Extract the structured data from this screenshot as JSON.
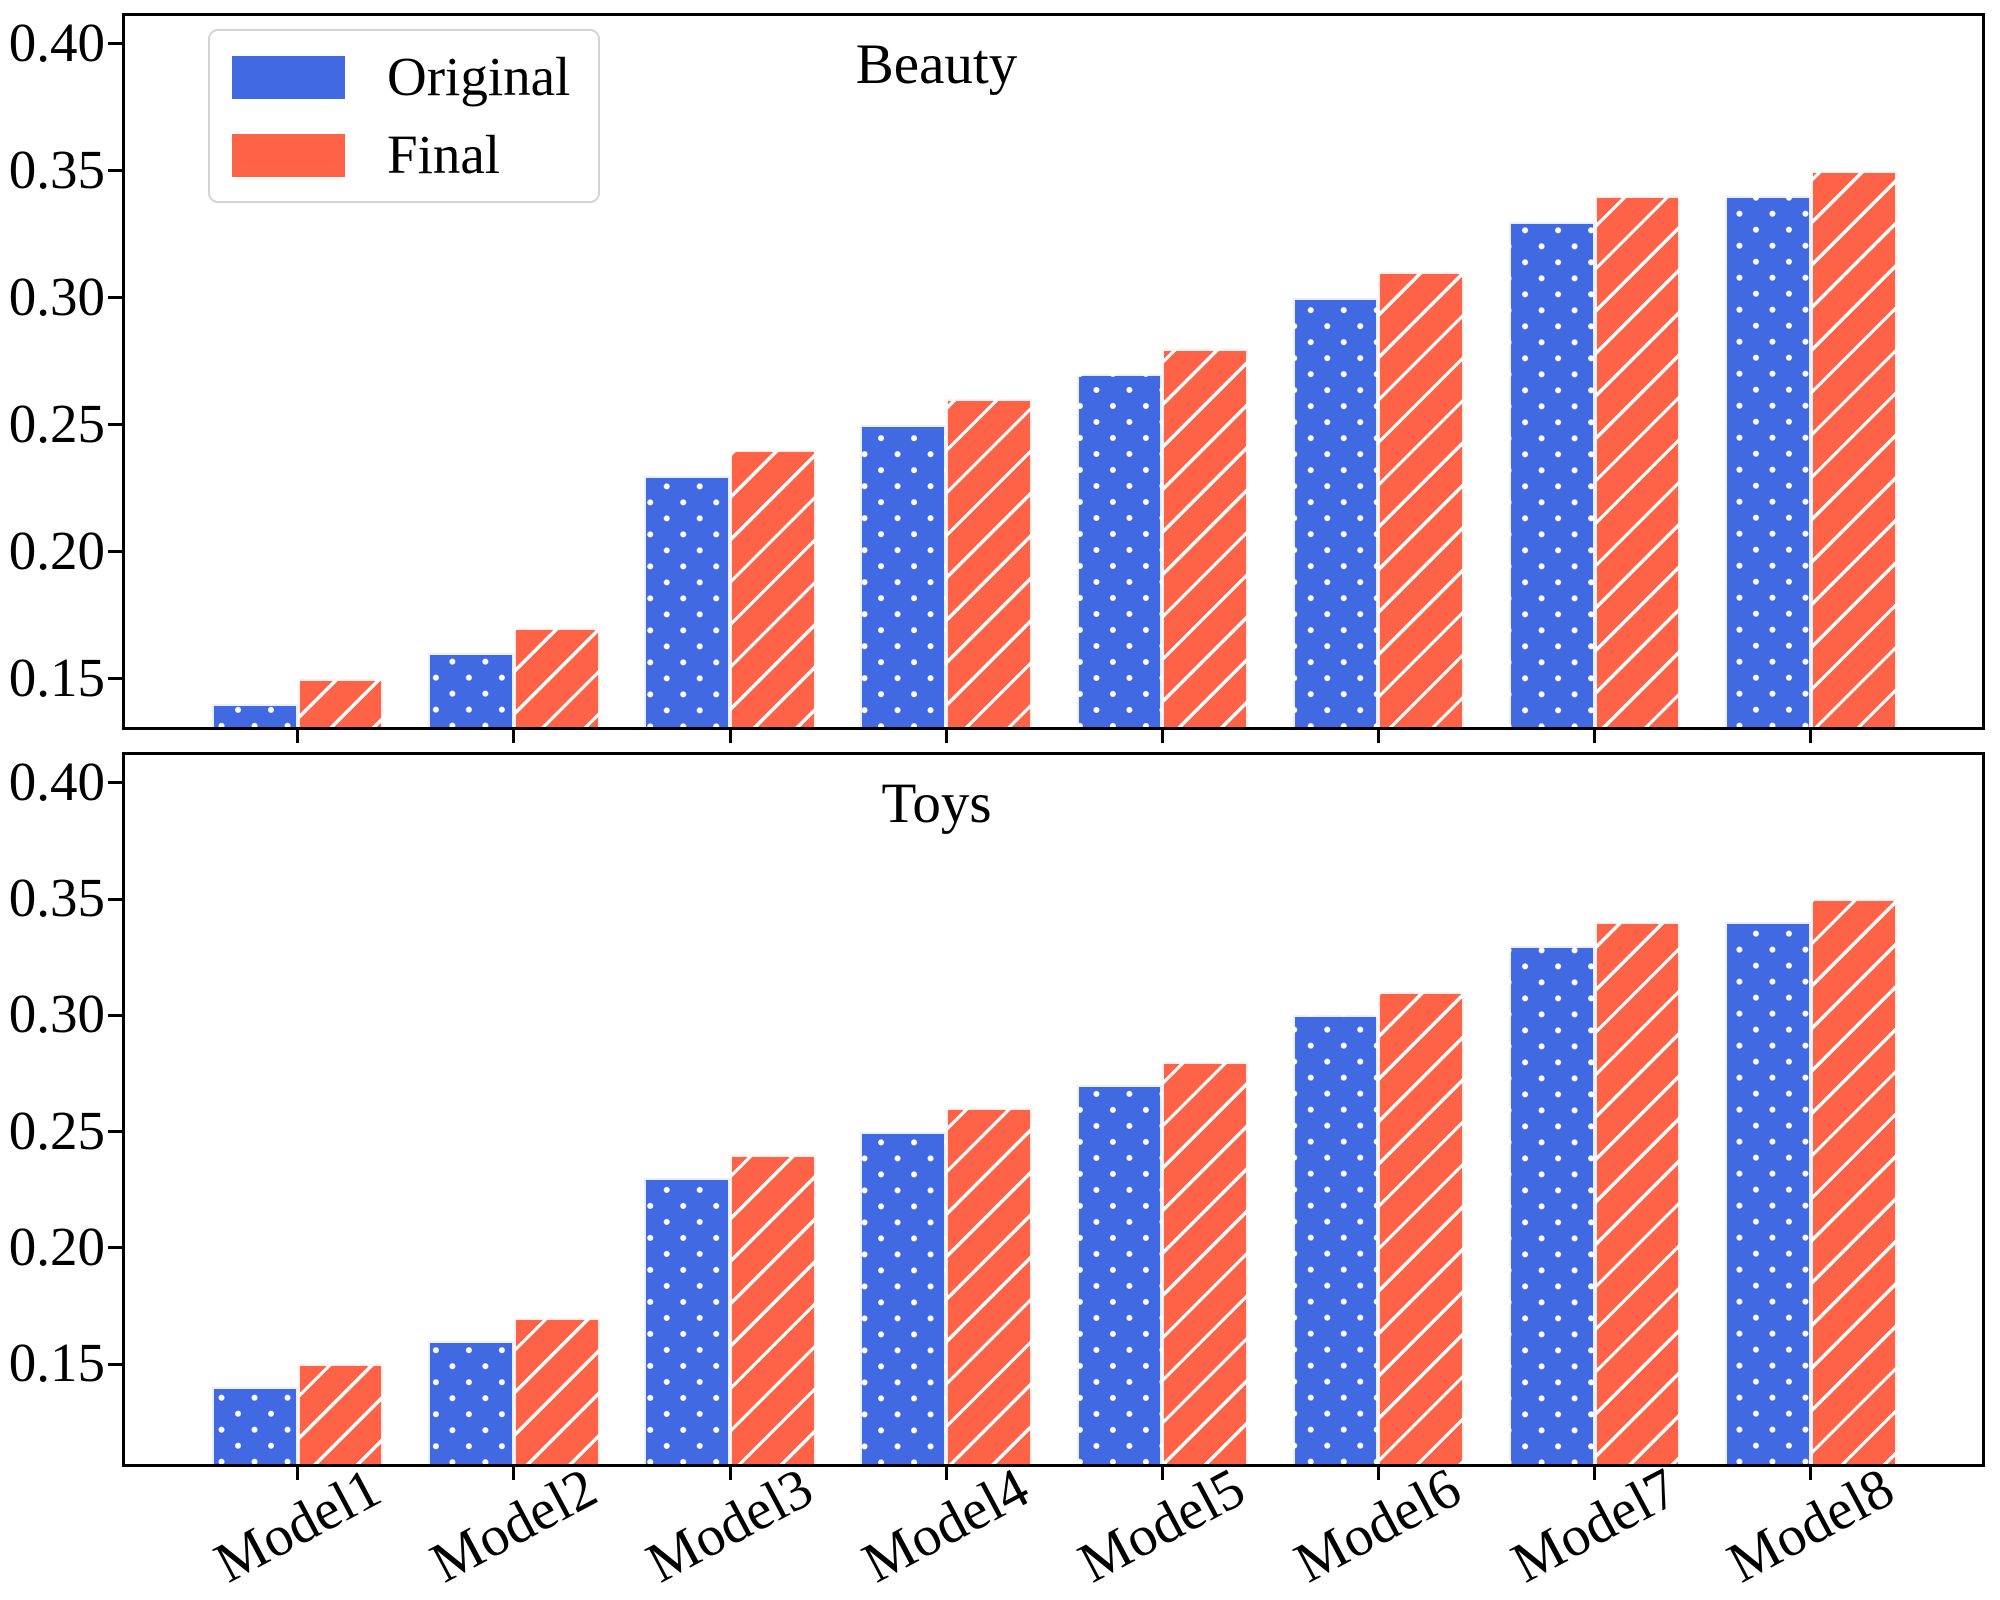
{
  "figure": {
    "background": "#ffffff"
  },
  "colors": {
    "original": "#4169E1",
    "final": "#FF6347",
    "hatch": "#ffffff",
    "axis": "#000000",
    "legend_border": "#d4d4d4"
  },
  "legend": {
    "items": [
      {
        "label": "Original",
        "color": "#4169E1",
        "hatch": "dots"
      },
      {
        "label": "Final",
        "color": "#FF6347",
        "hatch": "diagonal"
      }
    ]
  },
  "chart_data": [
    {
      "type": "bar",
      "title": "Beauty",
      "categories": [
        "Model1",
        "Model2",
        "Model3",
        "Model4",
        "Model5",
        "Model6",
        "Model7",
        "Model8"
      ],
      "series": [
        {
          "name": "Original",
          "color": "#4169E1",
          "hatch": "dots",
          "values": [
            0.14,
            0.16,
            0.23,
            0.25,
            0.27,
            0.3,
            0.33,
            0.34
          ]
        },
        {
          "name": "Final",
          "color": "#FF6347",
          "hatch": "diagonal",
          "values": [
            0.15,
            0.17,
            0.24,
            0.26,
            0.28,
            0.31,
            0.34,
            0.35
          ]
        }
      ],
      "ylim": [
        0.131,
        0.411
      ],
      "yticks": [
        0.15,
        0.2,
        0.25,
        0.3,
        0.35,
        0.4
      ],
      "ytick_labels": [
        "0.15",
        "0.20",
        "0.25",
        "0.30",
        "0.35",
        "0.40"
      ],
      "show_x_labels": false,
      "legend_position": "upper left",
      "grid": false
    },
    {
      "type": "bar",
      "title": "Toys",
      "categories": [
        "Model1",
        "Model2",
        "Model3",
        "Model4",
        "Model5",
        "Model6",
        "Model7",
        "Model8"
      ],
      "series": [
        {
          "name": "Original",
          "color": "#4169E1",
          "hatch": "dots",
          "values": [
            0.14,
            0.16,
            0.23,
            0.25,
            0.27,
            0.3,
            0.33,
            0.34
          ]
        },
        {
          "name": "Final",
          "color": "#FF6347",
          "hatch": "diagonal",
          "values": [
            0.15,
            0.17,
            0.24,
            0.26,
            0.28,
            0.31,
            0.34,
            0.35
          ]
        }
      ],
      "ylim": [
        0.107,
        0.412
      ],
      "yticks": [
        0.15,
        0.2,
        0.25,
        0.3,
        0.35,
        0.4
      ],
      "ytick_labels": [
        "0.15",
        "0.20",
        "0.25",
        "0.30",
        "0.35",
        "0.40"
      ],
      "show_x_labels": true,
      "legend_position": "none",
      "grid": false
    }
  ]
}
